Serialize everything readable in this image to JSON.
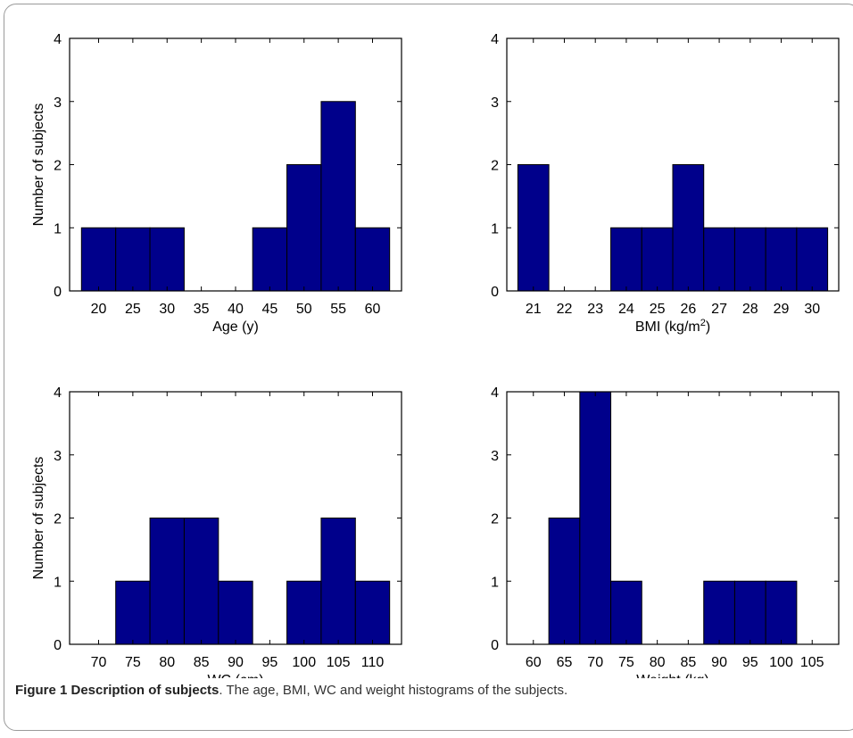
{
  "chart_data": [
    {
      "type": "bar",
      "categories": [
        "20",
        "25",
        "30",
        "35",
        "40",
        "45",
        "50",
        "55",
        "60"
      ],
      "values": [
        1,
        1,
        1,
        0,
        0,
        1,
        2,
        3,
        1
      ],
      "xlabel": "Age (y)",
      "ylabel": "Number of subjects",
      "ylim": [
        0,
        4
      ],
      "yticks": [
        "0",
        "1",
        "2",
        "3",
        "4"
      ],
      "grid": false
    },
    {
      "type": "bar",
      "categories": [
        "21",
        "22",
        "23",
        "24",
        "25",
        "26",
        "27",
        "28",
        "29",
        "30"
      ],
      "values": [
        2,
        0,
        0,
        1,
        1,
        2,
        1,
        1,
        1,
        1
      ],
      "xlabel": "BMI (kg/m²)",
      "ylabel": "",
      "ylim": [
        0,
        4
      ],
      "yticks": [
        "0",
        "1",
        "2",
        "3",
        "4"
      ],
      "grid": false
    },
    {
      "type": "bar",
      "categories": [
        "70",
        "75",
        "80",
        "85",
        "90",
        "95",
        "100",
        "105",
        "110"
      ],
      "values": [
        0,
        1,
        2,
        2,
        1,
        0,
        1,
        2,
        1
      ],
      "xlabel": "WC (cm)",
      "ylabel": "Number of subjects",
      "ylim": [
        0,
        4
      ],
      "yticks": [
        "0",
        "1",
        "2",
        "3",
        "4"
      ],
      "grid": false
    },
    {
      "type": "bar",
      "categories": [
        "60",
        "65",
        "70",
        "75",
        "80",
        "85",
        "90",
        "95",
        "100",
        "105"
      ],
      "values": [
        0,
        2,
        4,
        1,
        0,
        0,
        1,
        1,
        1,
        0
      ],
      "xlabel": "Weight (kg)",
      "ylabel": "",
      "ylim": [
        0,
        4
      ],
      "yticks": [
        "0",
        "1",
        "2",
        "3",
        "4"
      ],
      "grid": false
    }
  ],
  "colors": {
    "bar_fill": "#00008B",
    "bar_edge": "#000000"
  },
  "caption": {
    "bold": "Figure 1 Description of subjects",
    "rest": ". The age, BMI, WC and weight histograms of the subjects."
  }
}
